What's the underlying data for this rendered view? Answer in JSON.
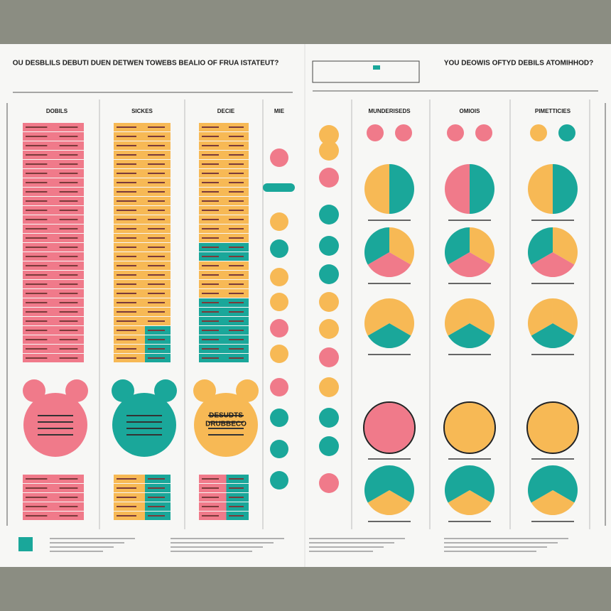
{
  "header": {
    "left_title": "OU DESBLILS DEBUTI DUEN DETWEN TOWEBS BEALIO OF FRUA ISTATEUT?",
    "right_title": "YOU DEOWIS OFTYD DEBILS ATOMIHHOD?"
  },
  "columns": [
    "DOBILS",
    "SICKES",
    "DECIE",
    "MIE",
    "MUNDERISEDS",
    "OMIOIS",
    "PIMETTICIES"
  ],
  "blob": {
    "line1": "DESUDTS",
    "line2": "DRUBBECO"
  }
}
